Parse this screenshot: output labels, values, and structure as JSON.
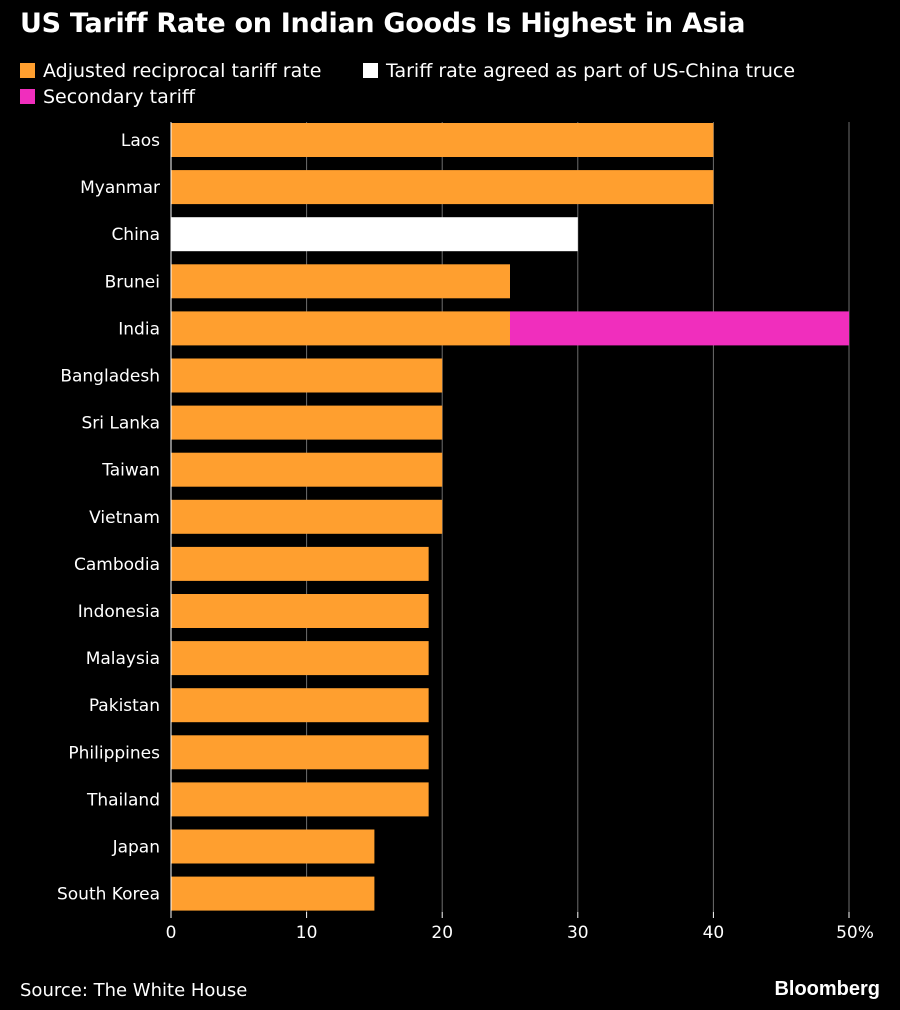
{
  "chart_data": {
    "type": "bar",
    "orientation": "horizontal",
    "stacked": true,
    "title": "US Tariff Rate on Indian Goods Is Highest in Asia",
    "categories": [
      "Laos",
      "Myanmar",
      "China",
      "Brunei",
      "India",
      "Bangladesh",
      "Sri Lanka",
      "Taiwan",
      "Vietnam",
      "Cambodia",
      "Indonesia",
      "Malaysia",
      "Pakistan",
      "Philippines",
      "Thailand",
      "Japan",
      "South Korea"
    ],
    "series": [
      {
        "name": "Adjusted reciprocal tariff rate",
        "color": "#ff9f2f",
        "values": [
          40,
          40,
          0,
          25,
          25,
          20,
          20,
          20,
          20,
          19,
          19,
          19,
          19,
          19,
          19,
          15,
          15
        ]
      },
      {
        "name": "Tariff rate agreed as part of US-China truce",
        "color": "#ffffff",
        "values": [
          0,
          0,
          30,
          0,
          0,
          0,
          0,
          0,
          0,
          0,
          0,
          0,
          0,
          0,
          0,
          0,
          0
        ]
      },
      {
        "name": "Secondary tariff",
        "color": "#f02ebd",
        "values": [
          0,
          0,
          0,
          0,
          25,
          0,
          0,
          0,
          0,
          0,
          0,
          0,
          0,
          0,
          0,
          0,
          0
        ]
      }
    ],
    "xlim": [
      0,
      50
    ],
    "xticks": [
      "0",
      "10",
      "20",
      "30",
      "40",
      "50%"
    ],
    "grid": "vertical",
    "legend_position": "top-left",
    "source": "Source: The White House",
    "brand": "Bloomberg"
  }
}
